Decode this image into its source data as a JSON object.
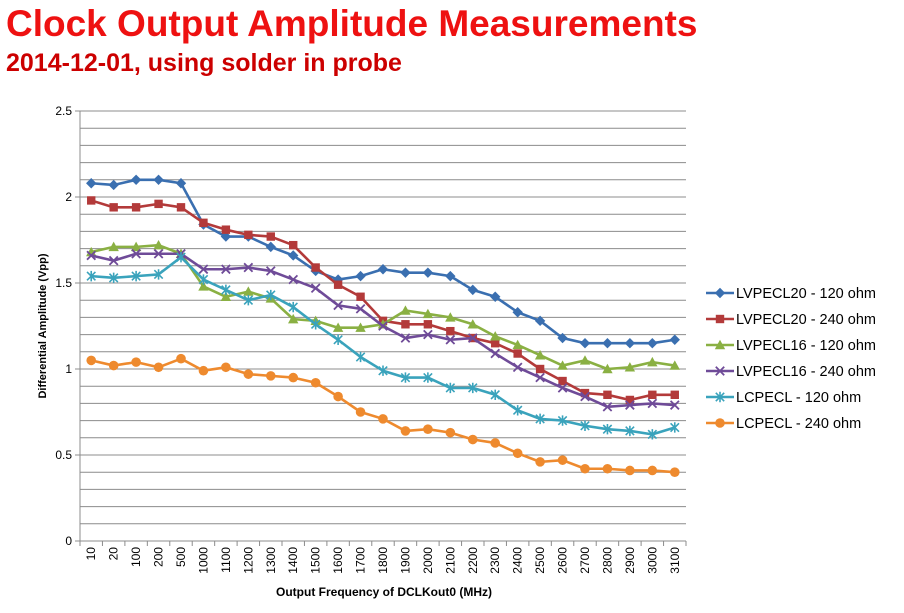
{
  "header": {
    "title": "Clock Output Amplitude Measurements",
    "subtitle": "2014-12-01, using solder in probe"
  },
  "chart_data": {
    "type": "line",
    "xlabel": "Output Frequency of DCLKout0  (MHz)",
    "ylabel": "Differential Amplitude (Vpp)",
    "ylim": [
      0,
      2.5
    ],
    "yticks": [
      "0",
      "0.5",
      "1",
      "1.5",
      "2",
      "2.5"
    ],
    "grid": true,
    "legend_position": "right",
    "categories": [
      "10",
      "20",
      "100",
      "200",
      "500",
      "1000",
      "1100",
      "1200",
      "1300",
      "1400",
      "1500",
      "1600",
      "1700",
      "1800",
      "1900",
      "2000",
      "2100",
      "2200",
      "2300",
      "2400",
      "2500",
      "2600",
      "2700",
      "2800",
      "2900",
      "3000",
      "3100"
    ],
    "series": [
      {
        "name": "LVPECL20 - 120 ohm",
        "color": "#3a6fb0",
        "marker": "diamond",
        "values": [
          2.08,
          2.07,
          2.1,
          2.1,
          2.08,
          1.84,
          1.77,
          1.77,
          1.71,
          1.66,
          1.57,
          1.52,
          1.54,
          1.58,
          1.56,
          1.56,
          1.54,
          1.46,
          1.42,
          1.33,
          1.28,
          1.18,
          1.15,
          1.15,
          1.15,
          1.15,
          1.17
        ]
      },
      {
        "name": "LVPECL20 - 240 ohm",
        "color": "#b33a3a",
        "marker": "square",
        "values": [
          1.98,
          1.94,
          1.94,
          1.96,
          1.94,
          1.85,
          1.81,
          1.78,
          1.77,
          1.72,
          1.59,
          1.49,
          1.42,
          1.28,
          1.26,
          1.26,
          1.22,
          1.18,
          1.15,
          1.09,
          1.0,
          0.93,
          0.86,
          0.85,
          0.82,
          0.85,
          0.85
        ]
      },
      {
        "name": "LVPECL16 - 120 ohm",
        "color": "#8ab043",
        "marker": "triangle",
        "values": [
          1.68,
          1.71,
          1.71,
          1.72,
          1.67,
          1.48,
          1.42,
          1.45,
          1.41,
          1.29,
          1.28,
          1.24,
          1.24,
          1.26,
          1.34,
          1.32,
          1.3,
          1.26,
          1.19,
          1.14,
          1.08,
          1.02,
          1.05,
          1.0,
          1.01,
          1.04,
          1.02
        ]
      },
      {
        "name": "LVPECL16 - 240 ohm",
        "color": "#6f4b98",
        "marker": "x",
        "values": [
          1.66,
          1.63,
          1.67,
          1.67,
          1.67,
          1.58,
          1.58,
          1.59,
          1.57,
          1.52,
          1.47,
          1.37,
          1.35,
          1.25,
          1.18,
          1.2,
          1.17,
          1.18,
          1.09,
          1.01,
          0.95,
          0.89,
          0.84,
          0.78,
          0.79,
          0.8,
          0.79
        ]
      },
      {
        "name": "LCPECL - 120 ohm",
        "color": "#3aa3bc",
        "marker": "asterisk",
        "values": [
          1.54,
          1.53,
          1.54,
          1.55,
          1.65,
          1.52,
          1.46,
          1.4,
          1.43,
          1.36,
          1.26,
          1.17,
          1.07,
          0.99,
          0.95,
          0.95,
          0.89,
          0.89,
          0.85,
          0.76,
          0.71,
          0.7,
          0.67,
          0.65,
          0.64,
          0.62,
          0.66
        ]
      },
      {
        "name": "LCPECL - 240 ohm",
        "color": "#ee8a2e",
        "marker": "circle",
        "values": [
          1.05,
          1.02,
          1.04,
          1.01,
          1.06,
          0.99,
          1.01,
          0.97,
          0.96,
          0.95,
          0.92,
          0.84,
          0.75,
          0.71,
          0.64,
          0.65,
          0.63,
          0.59,
          0.57,
          0.51,
          0.46,
          0.47,
          0.42,
          0.42,
          0.41,
          0.41,
          0.4
        ]
      }
    ]
  }
}
